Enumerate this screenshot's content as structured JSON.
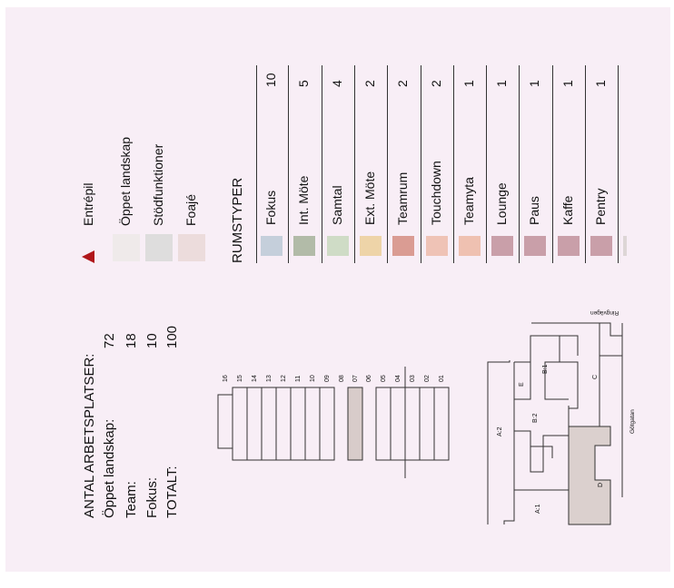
{
  "workplaces": {
    "title": "ANTAL ARBETSPLATSER:",
    "rows": [
      {
        "label": "Öppet landskap:",
        "value": "72"
      },
      {
        "label": "Team:",
        "value": "18"
      },
      {
        "label": "Fokus:",
        "value": "10"
      },
      {
        "label": "TOTALT:",
        "value": "100"
      }
    ]
  },
  "legend": {
    "entrance": {
      "label": "Entrépil",
      "color": "#b0161a"
    },
    "items": [
      {
        "label": "Öppet landskap",
        "color": "#efeaea"
      },
      {
        "label": "Stödfunktioner",
        "color": "#dedddd"
      },
      {
        "label": "Foajé",
        "color": "#ecdcdc"
      }
    ]
  },
  "room_types": {
    "title": "RUMSTYPER",
    "rows": [
      {
        "name": "Fokus",
        "count": "10",
        "color": "#c5cfdb"
      },
      {
        "name": "Int. Möte",
        "count": "5",
        "color": "#b2bba8"
      },
      {
        "name": "Samtal",
        "count": "4",
        "color": "#cfdcc6"
      },
      {
        "name": "Ext. Möte",
        "count": "2",
        "color": "#eed4a8"
      },
      {
        "name": "Teamrum",
        "count": "2",
        "color": "#da9c93"
      },
      {
        "name": "Touchdown",
        "count": "2",
        "color": "#efc3b6"
      },
      {
        "name": "Teamyta",
        "count": "1",
        "color": "#efc1b1"
      },
      {
        "name": "Lounge",
        "count": "1",
        "color": "#c99fa9"
      },
      {
        "name": "Paus",
        "count": "1",
        "color": "#c99fa9"
      },
      {
        "name": "Kaffe",
        "count": "1",
        "color": "#c99fa9"
      },
      {
        "name": "Pentry",
        "count": "1",
        "color": "#c99fa9"
      }
    ]
  },
  "floors": {
    "labels": [
      "16",
      "15",
      "14",
      "13",
      "12",
      "11",
      "10",
      "09",
      "08",
      "07",
      "06",
      "05",
      "04",
      "03",
      "02",
      "01"
    ],
    "highlight": "07",
    "highlight_color": "#d8ccca"
  },
  "site_plan": {
    "streets": {
      "top": "Ringvägen",
      "right": "Götgatan"
    },
    "buildings": [
      "A:1",
      "A:2",
      "B:1",
      "B:2",
      "C",
      "D",
      "E"
    ],
    "highlight": "D",
    "highlight_color": "#dbd0ce"
  }
}
